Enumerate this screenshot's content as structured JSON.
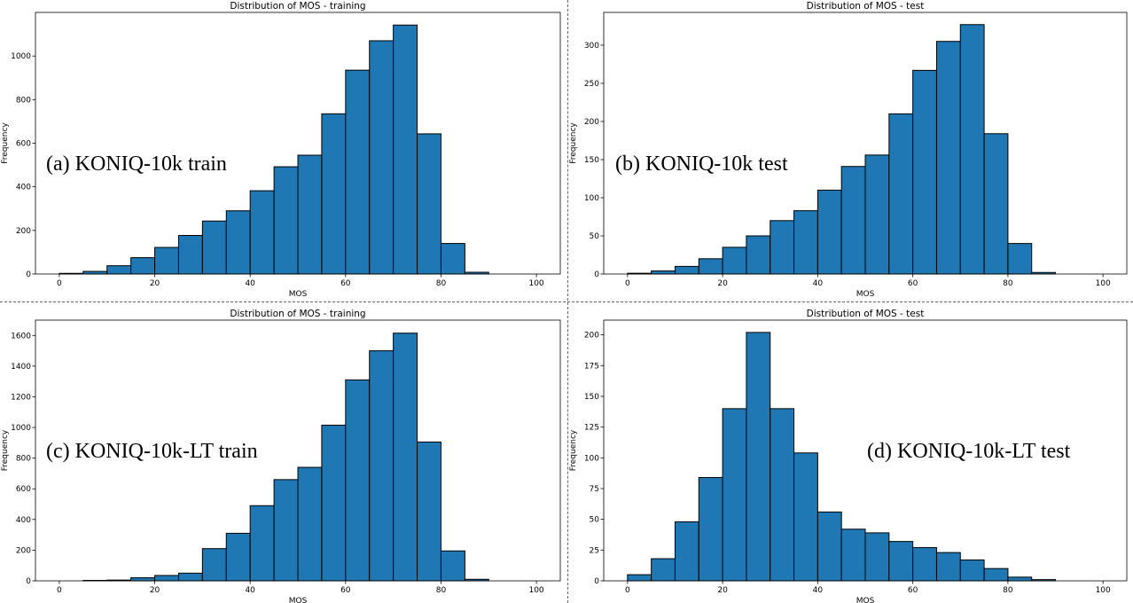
{
  "colors": {
    "bar_fill": "#1f77b4",
    "bar_edge": "#000000",
    "axes": "#000000",
    "background": "#ffffff"
  },
  "chart_data": [
    {
      "type": "bar",
      "title": "Distribution of MOS - training",
      "xlabel": "MOS",
      "ylabel": "Frequency",
      "annotation": "(a) KONIQ-10k train",
      "bin_edges": [
        0,
        5,
        10,
        15,
        20,
        25,
        30,
        35,
        40,
        45,
        50,
        55,
        60,
        65,
        70,
        75,
        80,
        85,
        90,
        95,
        100
      ],
      "values": [
        3,
        12,
        38,
        75,
        122,
        177,
        243,
        290,
        382,
        492,
        545,
        735,
        935,
        1070,
        1142,
        643,
        140,
        8,
        0,
        0
      ],
      "xlim": [
        -5,
        105
      ],
      "ylim": [
        0,
        1200
      ],
      "xticks": [
        0,
        20,
        40,
        60,
        80,
        100
      ],
      "yticks": [
        0,
        200,
        400,
        600,
        800,
        1000
      ]
    },
    {
      "type": "bar",
      "title": "Distribution of MOS - test",
      "xlabel": "MOS",
      "ylabel": "Frequency",
      "annotation": "(b) KONIQ-10k test",
      "bin_edges": [
        0,
        5,
        10,
        15,
        20,
        25,
        30,
        35,
        40,
        45,
        50,
        55,
        60,
        65,
        70,
        75,
        80,
        85,
        90,
        95,
        100
      ],
      "values": [
        1,
        4,
        10,
        20,
        35,
        50,
        70,
        83,
        110,
        141,
        156,
        210,
        267,
        305,
        327,
        184,
        40,
        2,
        0,
        0
      ],
      "xlim": [
        -5,
        105
      ],
      "ylim": [
        0,
        343
      ],
      "xticks": [
        0,
        20,
        40,
        60,
        80,
        100
      ],
      "yticks": [
        0,
        50,
        100,
        150,
        200,
        250,
        300
      ]
    },
    {
      "type": "bar",
      "title": "Distribution of MOS - training",
      "xlabel": "MOS",
      "ylabel": "Frequency",
      "annotation": "(c) KONIQ-10k-LT train",
      "bin_edges": [
        0,
        5,
        10,
        15,
        20,
        25,
        30,
        35,
        40,
        45,
        50,
        55,
        60,
        65,
        70,
        75,
        80,
        85,
        90,
        95,
        100
      ],
      "values": [
        0,
        3,
        5,
        20,
        35,
        50,
        210,
        310,
        490,
        660,
        740,
        1015,
        1310,
        1500,
        1615,
        905,
        195,
        10,
        0,
        0
      ],
      "xlim": [
        -5,
        105
      ],
      "ylim": [
        0,
        1700
      ],
      "xticks": [
        0,
        20,
        40,
        60,
        80,
        100
      ],
      "yticks": [
        0,
        200,
        400,
        600,
        800,
        1000,
        1200,
        1400,
        1600
      ]
    },
    {
      "type": "bar",
      "title": "Distribution of MOS - test",
      "xlabel": "MOS",
      "ylabel": "Frequency",
      "annotation": "(d) KONIQ-10k-LT test",
      "bin_edges": [
        0,
        5,
        10,
        15,
        20,
        25,
        30,
        35,
        40,
        45,
        50,
        55,
        60,
        65,
        70,
        75,
        80,
        85,
        90,
        95,
        100
      ],
      "values": [
        5,
        18,
        48,
        84,
        140,
        202,
        140,
        104,
        56,
        42,
        39,
        32,
        27,
        23,
        17,
        10,
        3,
        1,
        0,
        0
      ],
      "xlim": [
        -5,
        105
      ],
      "ylim": [
        0,
        212
      ],
      "xticks": [
        0,
        20,
        40,
        60,
        80,
        100
      ],
      "yticks": [
        0,
        25,
        50,
        75,
        100,
        125,
        150,
        175,
        200
      ]
    }
  ]
}
